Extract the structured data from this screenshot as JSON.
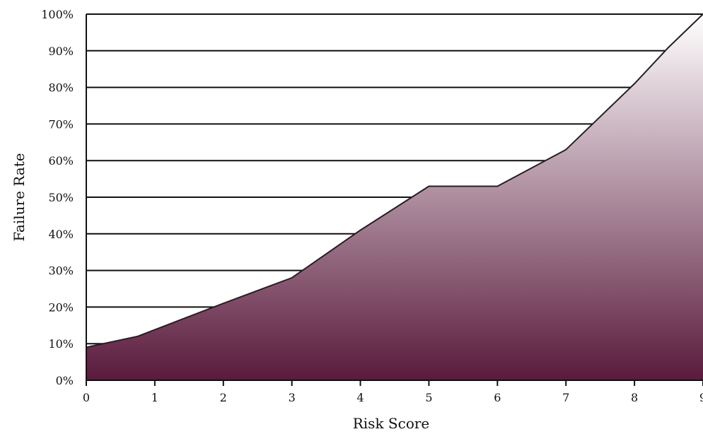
{
  "chart_data": {
    "type": "area",
    "title": "",
    "xlabel": "Risk Score",
    "ylabel": "Failure Rate",
    "x": [
      0,
      0.75,
      2,
      3,
      4,
      5,
      6,
      7,
      8,
      8.5,
      9
    ],
    "series": [
      {
        "values": [
          9,
          12,
          21,
          28,
          41,
          53,
          53,
          63,
          81,
          91,
          100
        ]
      }
    ],
    "xlim": [
      0,
      9
    ],
    "ylim": [
      0,
      100
    ],
    "xticks": [
      0,
      1,
      2,
      3,
      4,
      5,
      6,
      7,
      8,
      9
    ],
    "xtick_labels": [
      "0",
      "1",
      "2",
      "3",
      "4",
      "5",
      "6",
      "7",
      "8",
      "9"
    ],
    "yticks": [
      0,
      10,
      20,
      30,
      40,
      50,
      60,
      70,
      80,
      90,
      100
    ],
    "ytick_labels": [
      "0%",
      "10%",
      "20%",
      "30%",
      "40%",
      "50%",
      "60%",
      "70%",
      "80%",
      "90%",
      "100%"
    ],
    "grid": true,
    "fill_gradient": {
      "top": "#ffffff",
      "bottom": "#5a1a3c"
    },
    "line_color": "#222222"
  }
}
